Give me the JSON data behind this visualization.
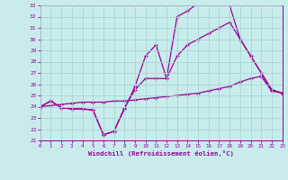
{
  "xlabel": "Windchill (Refroidissement éolien,°C)",
  "xlim": [
    0,
    23
  ],
  "ylim": [
    21,
    33
  ],
  "yticks": [
    21,
    22,
    23,
    24,
    25,
    26,
    27,
    28,
    29,
    30,
    31,
    32,
    33
  ],
  "xticks": [
    0,
    1,
    2,
    3,
    4,
    5,
    6,
    7,
    8,
    9,
    10,
    11,
    12,
    13,
    14,
    15,
    16,
    17,
    18,
    19,
    20,
    21,
    22,
    23
  ],
  "bg_color": "#c8ecec",
  "grid_color": "#aad4d4",
  "line_color": "#990099",
  "line1_x": [
    0,
    1,
    2,
    3,
    4,
    5,
    6,
    7,
    8,
    9,
    10,
    11,
    12,
    13,
    14,
    15,
    16,
    17,
    18,
    19,
    20,
    21,
    22,
    23
  ],
  "line1_y": [
    24.0,
    24.5,
    23.9,
    23.8,
    23.8,
    23.7,
    21.5,
    21.8,
    23.8,
    25.8,
    28.5,
    29.5,
    26.5,
    32.0,
    32.5,
    33.2,
    33.3,
    33.2,
    33.0,
    30.0,
    28.5,
    27.0,
    25.5,
    25.2
  ],
  "line2_x": [
    0,
    1,
    2,
    3,
    4,
    5,
    6,
    7,
    8,
    9,
    10,
    11,
    12,
    13,
    14,
    15,
    16,
    17,
    18,
    19,
    20,
    21,
    22,
    23
  ],
  "line2_y": [
    24.0,
    24.5,
    23.9,
    23.8,
    23.8,
    23.7,
    21.5,
    21.8,
    23.9,
    25.5,
    26.5,
    26.5,
    26.5,
    28.5,
    29.5,
    30.0,
    30.5,
    31.0,
    31.5,
    30.0,
    28.5,
    27.0,
    25.5,
    25.2
  ],
  "line3_x": [
    0,
    1,
    2,
    3,
    4,
    5,
    6,
    7,
    8,
    9,
    10,
    11,
    12,
    13,
    14,
    15,
    16,
    17,
    18,
    19,
    20,
    21,
    22,
    23
  ],
  "line3_y": [
    24.0,
    24.1,
    24.2,
    24.3,
    24.4,
    24.4,
    24.4,
    24.5,
    24.5,
    24.6,
    24.7,
    24.8,
    24.9,
    25.0,
    25.1,
    25.2,
    25.4,
    25.6,
    25.8,
    26.2,
    26.5,
    26.7,
    25.4,
    25.2
  ]
}
